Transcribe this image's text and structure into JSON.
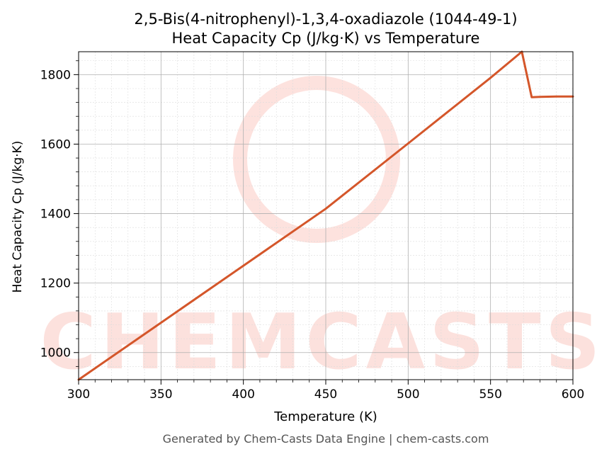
{
  "chart_data": {
    "type": "line",
    "title_line1": "2,5-Bis(4-nitrophenyl)-1,3,4-oxadiazole (1044-49-1)",
    "title_line2": "Heat Capacity Cp (J/kg·K) vs Temperature",
    "xlabel": "Temperature (K)",
    "ylabel": "Heat Capacity Cp (J/kg·K)",
    "xlim": [
      300,
      600
    ],
    "ylim": [
      922,
      1866
    ],
    "xticks": [
      300,
      350,
      400,
      450,
      500,
      550,
      600
    ],
    "yticks": [
      1000,
      1200,
      1400,
      1600,
      1800
    ],
    "grid": true,
    "series": [
      {
        "color": "#d4562a",
        "x": [
          300,
          350,
          400,
          450,
          500,
          550,
          569,
          575,
          580,
          590,
          600
        ],
        "y": [
          922,
          1086,
          1250,
          1414,
          1602,
          1791,
          1866,
          1735,
          1736,
          1737,
          1737
        ]
      }
    ],
    "watermark": "CHEMCASTS",
    "footer": "Generated by Chem-Casts Data Engine | chem-casts.com"
  }
}
